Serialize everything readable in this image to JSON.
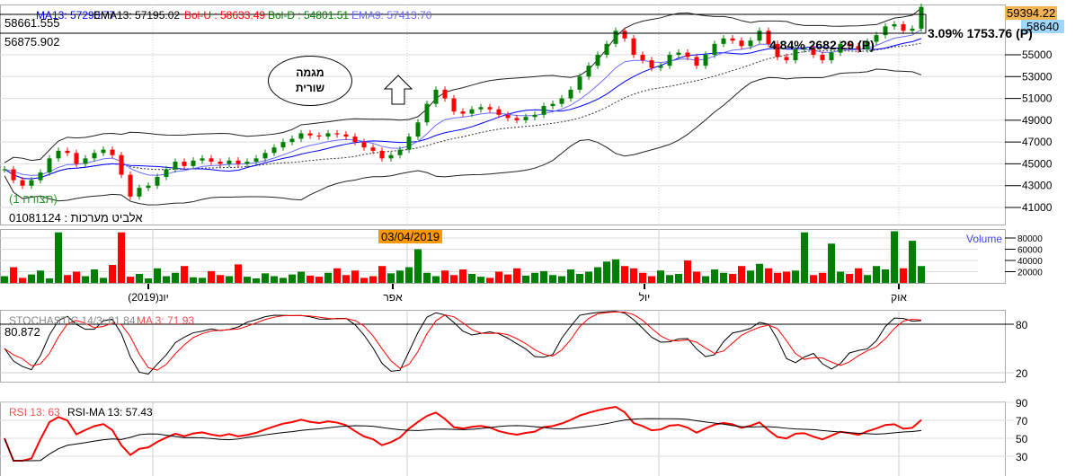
{
  "legend": {
    "ma13": "MA13: 57290.77",
    "ema13": "EMA13: 57195.02",
    "bol_u": "Bol-U : 58633.49",
    "bol_d": "Bol-D : 54801.51",
    "ema9": "EMA9: 57413.70"
  },
  "readouts": {
    "cursor_high": "58661.555",
    "cursor_low": "56875.902",
    "last_price": "59394.22",
    "ref_price": "58640",
    "date_tag": "03/04/2019",
    "stoch_readout": "80.872"
  },
  "annotations": {
    "measure1": "4.84% 2682.29 (P)",
    "measure2": "3.09% 1753.76 (P)",
    "ellipse_line1": "מגמה",
    "ellipse_line2": "שורית",
    "pattern_label": "(תצורה 1)",
    "security": "אלביט מערכות : 01081124"
  },
  "volume_label": "Volume",
  "stoch": {
    "label": "STOCHASTIC 14/3: 81.84",
    "ma_label": "MA 3: 71.93"
  },
  "rsi": {
    "label": "RSI 13: 63",
    "ma_label": "RSI-MA 13: 57.43"
  },
  "colors": {
    "up": "#008000",
    "down": "#ff0000",
    "ma13": "#0000ff",
    "ema9": "#6a6aff",
    "bollinger": "#000000",
    "last_price_bg": "#f6b450",
    "ref_price_bg": "#9fd8ff",
    "date_tag_bg": "#ff9900"
  },
  "chart_data": [
    {
      "type": "candlestick",
      "ylim": [
        40000,
        60000
      ],
      "yticks": [
        41000,
        43000,
        45000,
        47000,
        49000,
        51000,
        53000,
        55000
      ],
      "x_tick_labels": [
        "יונ(2019)",
        "אפר",
        "יול",
        "אוק"
      ],
      "close": [
        44500,
        43500,
        43000,
        43500,
        44200,
        45500,
        46200,
        46000,
        45000,
        45500,
        46000,
        46300,
        45800,
        44000,
        42000,
        42800,
        43000,
        43800,
        44500,
        45200,
        44800,
        45300,
        45500,
        45200,
        45000,
        45300,
        45000,
        45200,
        45500,
        46000,
        46500,
        47000,
        47300,
        47800,
        47600,
        47500,
        47800,
        47700,
        47500,
        47000,
        46500,
        46200,
        45500,
        45800,
        46300,
        47500,
        48800,
        50500,
        51800,
        51000,
        49800,
        49600,
        50000,
        50200,
        50000,
        49500,
        49200,
        49000,
        49300,
        49500,
        50300,
        50500,
        51000,
        51800,
        53000,
        54000,
        55000,
        56000,
        57200,
        56500,
        55000,
        54500,
        53800,
        54000,
        55000,
        55200,
        54800,
        54000,
        55000,
        56000,
        56500,
        56300,
        55800,
        56300,
        57200,
        56000,
        54800,
        54500,
        55500,
        55600,
        55000,
        54500,
        55200,
        56000,
        55800,
        55500,
        56200,
        56800,
        57600,
        57800,
        57200,
        57400,
        59394
      ]
    },
    {
      "type": "bar",
      "name": "Volume",
      "ylim": [
        0,
        90000
      ],
      "yticks": [
        20000,
        40000,
        60000,
        80000
      ],
      "values": [
        12000,
        28000,
        9000,
        15000,
        22000,
        8000,
        90000,
        14000,
        20000,
        12000,
        24000,
        9000,
        32000,
        90000,
        11000,
        16000,
        8000,
        26000,
        12000,
        18000,
        30000,
        10000,
        9000,
        21000,
        14000,
        12000,
        33000,
        11000,
        8000,
        17000,
        12000,
        9000,
        15000,
        20000,
        13000,
        11000,
        18000,
        26000,
        14000,
        22000,
        9000,
        12000,
        30000,
        17000,
        22000,
        28000,
        60000,
        18000,
        12000,
        22000,
        14000,
        24000,
        16000,
        11000,
        9000,
        20000,
        15000,
        26000,
        13000,
        18000,
        21000,
        14000,
        12000,
        24000,
        16000,
        20000,
        28000,
        38000,
        42000,
        30000,
        26000,
        18000,
        12000,
        22000,
        14000,
        16000,
        40000,
        20000,
        12000,
        24000,
        18000,
        16000,
        30000,
        22000,
        34000,
        26000,
        18000,
        20000,
        22000,
        90000,
        14000,
        18000,
        70000,
        20000,
        16000,
        26000,
        14000,
        30000,
        24000,
        92000,
        26000,
        75000,
        30000
      ]
    },
    {
      "type": "line",
      "name": "STOCHASTIC 14/3",
      "ylim": [
        0,
        100
      ],
      "yticks": [
        20,
        80
      ]
    },
    {
      "type": "line",
      "name": "RSI 13",
      "ylim": [
        20,
        90
      ],
      "yticks": [
        30,
        50,
        70,
        90
      ]
    }
  ]
}
